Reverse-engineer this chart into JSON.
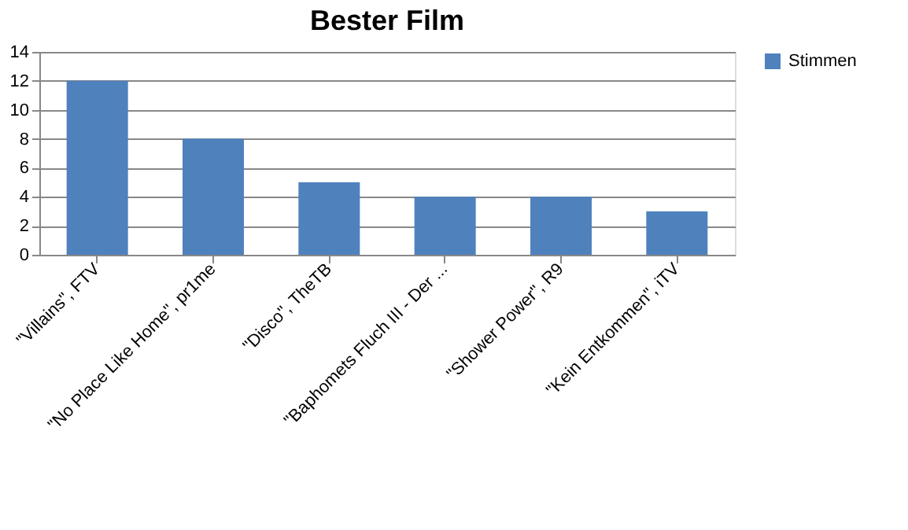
{
  "chart_data": {
    "type": "bar",
    "title": "Bester Film",
    "categories": [
      "\"Villains\", FTV",
      "\"No Place Like Home\", pr1me",
      "\"Disco\", TheTB",
      "\"Baphomets Fluch III - Der ...",
      "\"Shower Power\", R9",
      "\"Kein Entkommen\", iTV"
    ],
    "series": [
      {
        "name": "Stimmen",
        "color": "#4f81bd",
        "values": [
          12,
          8,
          5,
          4,
          4,
          3
        ]
      }
    ],
    "ylim": [
      0,
      14
    ],
    "yticks": [
      0,
      2,
      4,
      6,
      8,
      10,
      12,
      14
    ],
    "grid": "y",
    "legend": "right"
  }
}
